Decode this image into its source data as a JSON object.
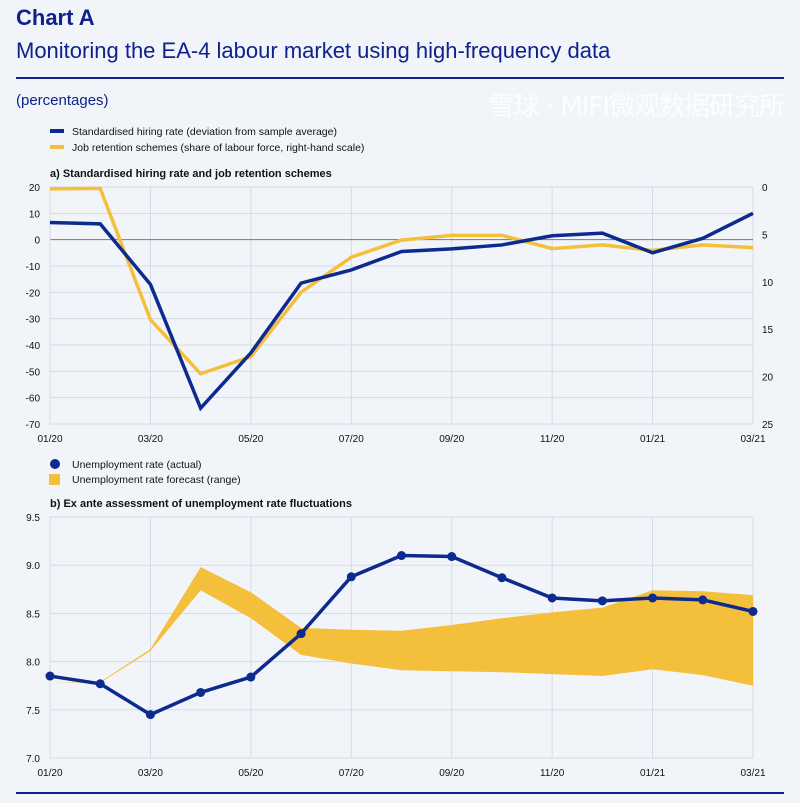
{
  "header": {
    "title": "Chart A",
    "subtitle": "Monitoring the EA-4 labour market using high-frequency data",
    "unit": "(percentages)"
  },
  "watermark": "雪球 · MIFI微观数据研究所",
  "colors": {
    "blue": "#0d2a8f",
    "yellow": "#f4bf3a",
    "title": "#10218b"
  },
  "chart_data": [
    {
      "type": "line",
      "title": "a) Standardised hiring rate and job retention schemes",
      "categories": [
        "01/20",
        "02/20",
        "03/20",
        "04/20",
        "05/20",
        "06/20",
        "07/20",
        "08/20",
        "09/20",
        "10/20",
        "11/20",
        "12/20",
        "01/21",
        "02/21",
        "03/21"
      ],
      "x_tick_labels": [
        "01/20",
        "03/20",
        "05/20",
        "07/20",
        "09/20",
        "11/20",
        "01/21",
        "03/21"
      ],
      "ylim": [
        -70,
        20
      ],
      "yticks": [
        20,
        10,
        0,
        -10,
        -20,
        -30,
        -40,
        -50,
        -60,
        -70
      ],
      "y2lim": [
        0,
        25
      ],
      "y2_inverted": true,
      "y2ticks": [
        0,
        5,
        10,
        15,
        20,
        25
      ],
      "series": [
        {
          "name": "Standardised hiring rate (deviation from sample average)",
          "axis": "left",
          "values": [
            6.5,
            6,
            -17,
            -64,
            -43,
            -16.5,
            -11.5,
            -4.5,
            -3.5,
            -2,
            1.5,
            2.5,
            -5,
            0.5,
            10
          ]
        },
        {
          "name": "Job retention schemes (share of labour force, right-hand scale)",
          "axis": "right",
          "values": [
            0.2,
            0.15,
            14,
            19.7,
            17.9,
            11.1,
            7.4,
            5.6,
            5.1,
            5.1,
            6.5,
            6.1,
            6.7,
            6.1,
            6.4
          ]
        }
      ],
      "legend": "top-left"
    },
    {
      "type": "line",
      "title": "b) Ex ante assessment of unemployment rate fluctuations",
      "categories": [
        "01/20",
        "02/20",
        "03/20",
        "04/20",
        "05/20",
        "06/20",
        "07/20",
        "08/20",
        "09/20",
        "10/20",
        "11/20",
        "12/20",
        "01/21",
        "02/21",
        "03/21"
      ],
      "x_tick_labels": [
        "01/20",
        "03/20",
        "05/20",
        "07/20",
        "09/20",
        "11/20",
        "01/21",
        "03/21"
      ],
      "ylim": [
        7.0,
        9.5
      ],
      "yticks": [
        "9.5",
        "9.0",
        "8.5",
        "8.0",
        "7.5",
        "7.0"
      ],
      "series": [
        {
          "name": "Unemployment rate (actual)",
          "values": [
            7.85,
            7.77,
            7.45,
            7.68,
            7.84,
            8.29,
            8.88,
            9.1,
            9.09,
            8.87,
            8.66,
            8.63,
            8.66,
            8.64,
            8.52
          ]
        },
        {
          "name": "Unemployment rate forecast (range)",
          "upper": [
            7.78,
            7.79,
            8.13,
            8.98,
            8.72,
            8.35,
            8.33,
            8.32,
            8.38,
            8.45,
            8.51,
            8.56,
            8.74,
            8.73,
            8.69
          ],
          "lower": [
            7.78,
            7.78,
            8.11,
            8.74,
            8.45,
            8.07,
            7.98,
            7.91,
            7.9,
            7.89,
            7.87,
            7.85,
            7.92,
            7.86,
            7.75
          ]
        }
      ],
      "legend": "top-left"
    }
  ]
}
